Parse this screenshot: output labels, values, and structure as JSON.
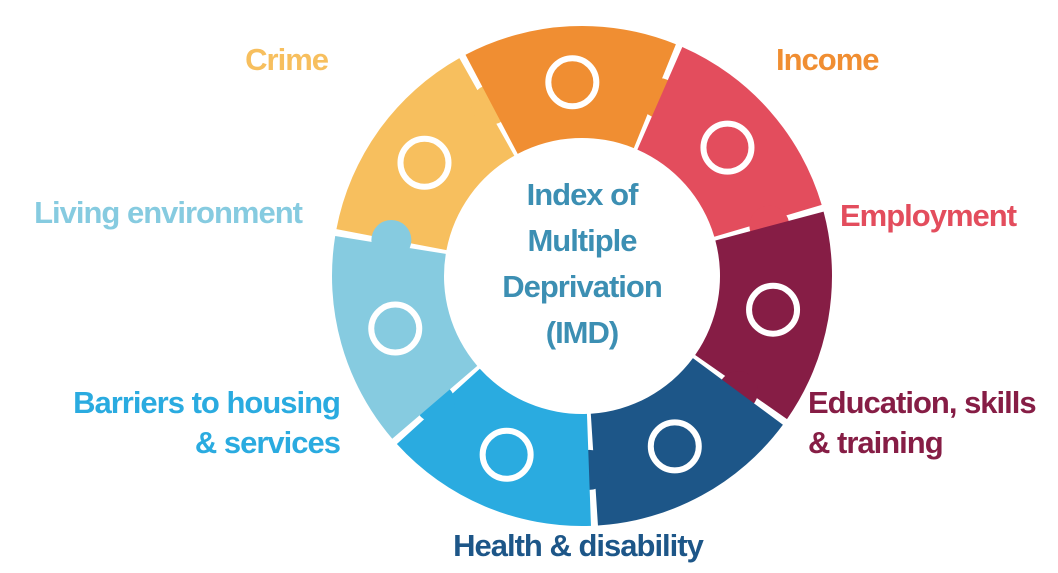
{
  "center_title": [
    "Index of",
    "Multiple",
    "Deprivation",
    "(IMD)"
  ],
  "domains": [
    {
      "label": [
        "Crime"
      ],
      "color": "#f7bf5e"
    },
    {
      "label": [
        "Income"
      ],
      "color": "#f08e32"
    },
    {
      "label": [
        "Employment"
      ],
      "color": "#e34d5d"
    },
    {
      "label": [
        "Education, skills",
        "& training"
      ],
      "color": "#861d45"
    },
    {
      "label": [
        "Health & disability"
      ],
      "color": "#1d5688"
    },
    {
      "label": [
        "Barriers to housing",
        "& services"
      ],
      "color": "#2aabe0"
    },
    {
      "label": [
        "Living environment"
      ],
      "color": "#86cbe0"
    }
  ]
}
